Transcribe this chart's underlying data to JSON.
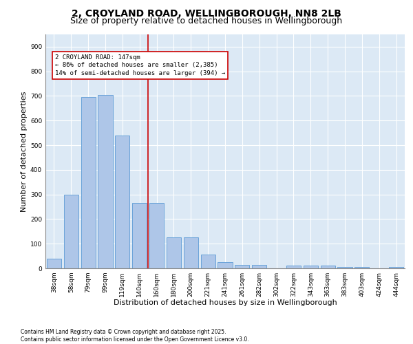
{
  "title_line1": "2, CROYLAND ROAD, WELLINGBOROUGH, NN8 2LB",
  "title_line2": "Size of property relative to detached houses in Wellingborough",
  "xlabel": "Distribution of detached houses by size in Wellingborough",
  "ylabel": "Number of detached properties",
  "categories": [
    "38sqm",
    "58sqm",
    "79sqm",
    "99sqm",
    "119sqm",
    "140sqm",
    "160sqm",
    "180sqm",
    "200sqm",
    "221sqm",
    "241sqm",
    "261sqm",
    "282sqm",
    "302sqm",
    "322sqm",
    "343sqm",
    "363sqm",
    "383sqm",
    "403sqm",
    "424sqm",
    "444sqm"
  ],
  "values": [
    40,
    300,
    695,
    705,
    540,
    265,
    265,
    125,
    125,
    55,
    25,
    15,
    15,
    0,
    10,
    10,
    10,
    5,
    5,
    0,
    5
  ],
  "bar_color": "#aec6e8",
  "bar_edge_color": "#5b9bd5",
  "vline_x": 5.5,
  "vline_color": "#cc0000",
  "annotation_text": "2 CROYLAND ROAD: 147sqm\n← 86% of detached houses are smaller (2,385)\n14% of semi-detached houses are larger (394) →",
  "annotation_box_color": "#cc0000",
  "ylim": [
    0,
    950
  ],
  "yticks": [
    0,
    100,
    200,
    300,
    400,
    500,
    600,
    700,
    800,
    900
  ],
  "background_color": "#dce9f5",
  "grid_color": "#ffffff",
  "footer_text": "Contains HM Land Registry data © Crown copyright and database right 2025.\nContains public sector information licensed under the Open Government Licence v3.0.",
  "title_fontsize": 10,
  "subtitle_fontsize": 9,
  "xlabel_fontsize": 8,
  "ylabel_fontsize": 8,
  "tick_fontsize": 6.5,
  "annotation_fontsize": 6.5,
  "footer_fontsize": 5.5
}
